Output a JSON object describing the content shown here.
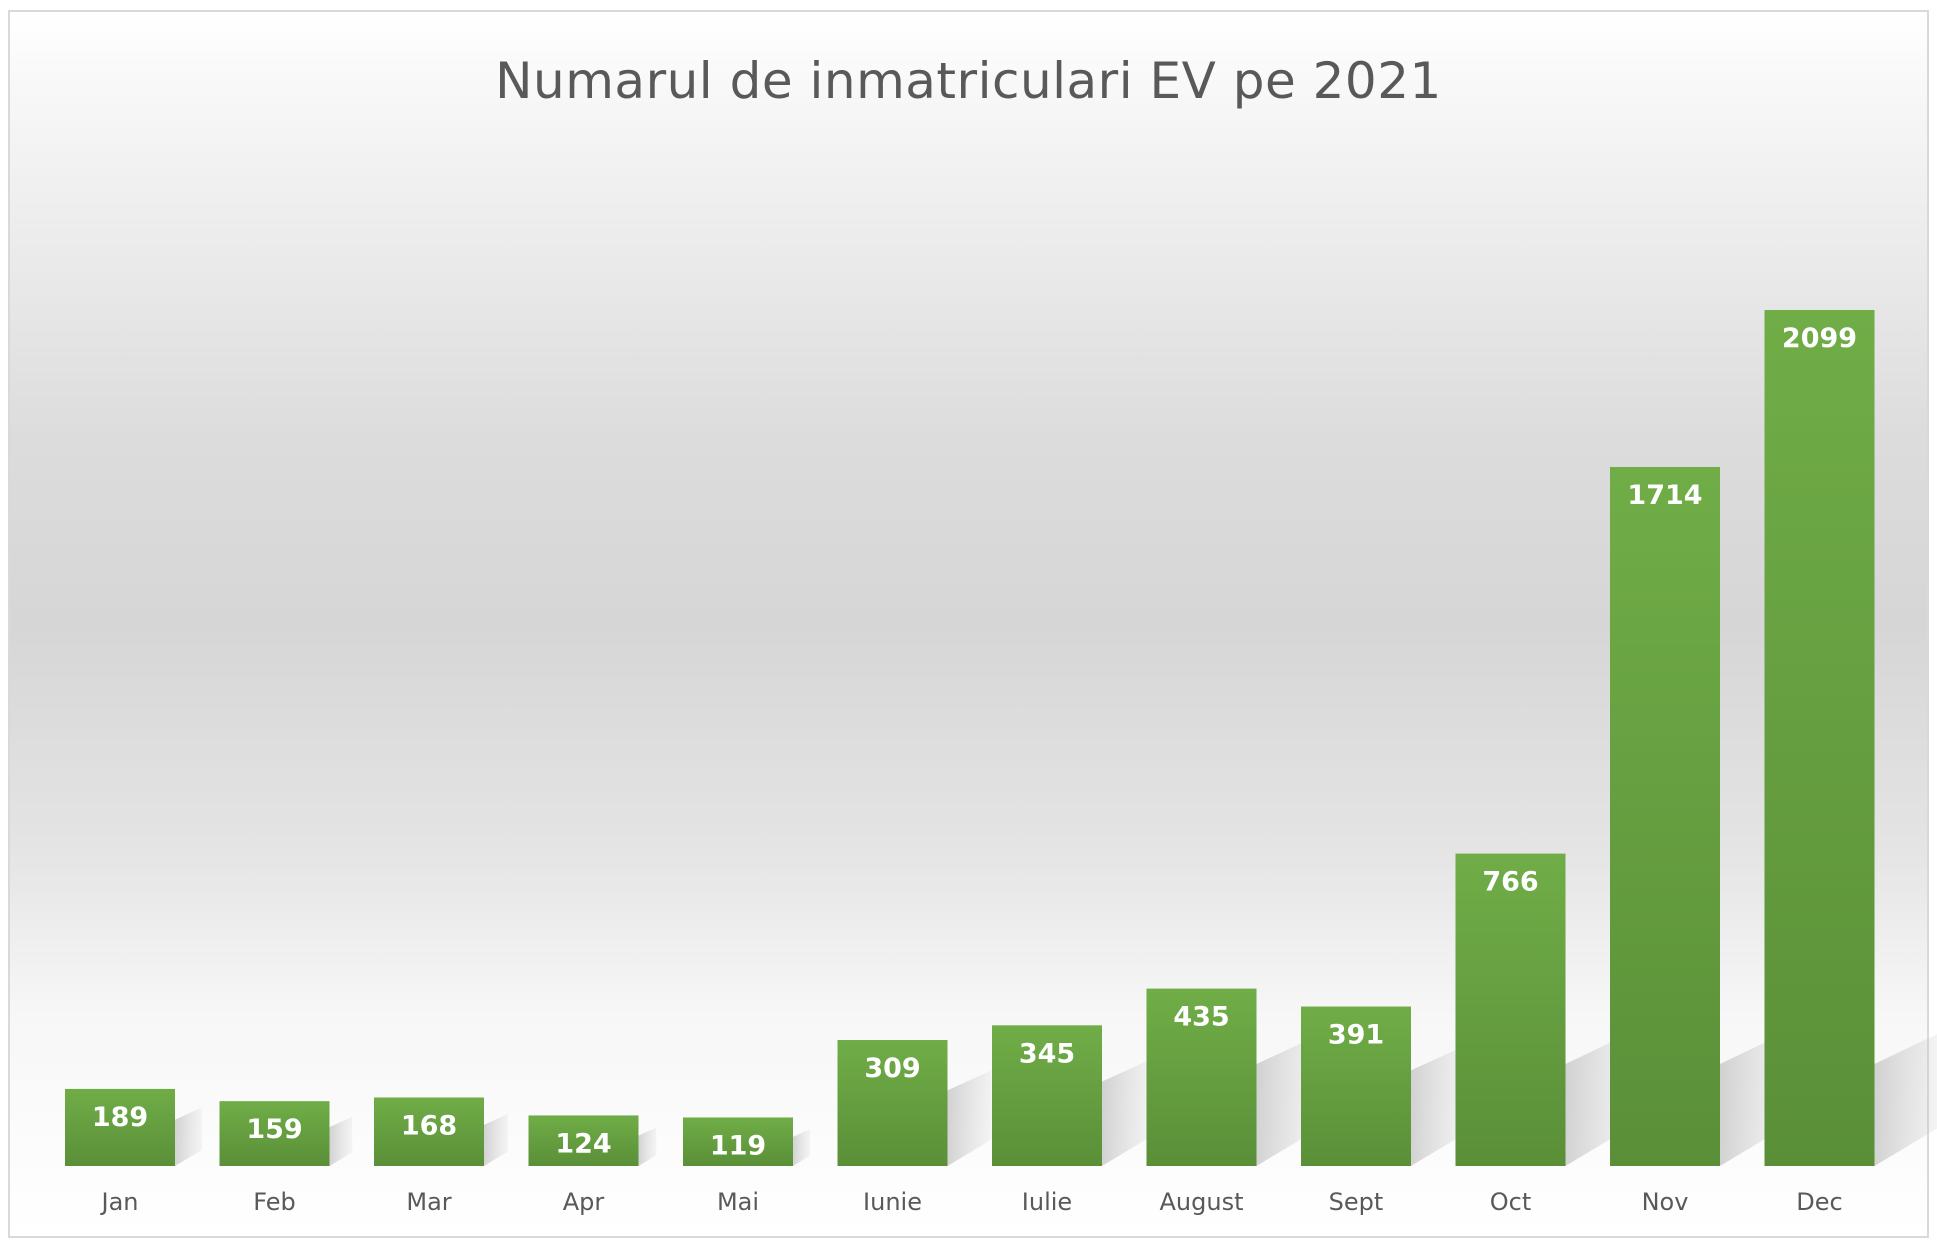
{
  "chart_data": {
    "type": "bar",
    "title": "Numarul de inmatriculari EV pe 2021",
    "xlabel": "",
    "ylabel": "",
    "categories": [
      "Jan",
      "Feb",
      "Mar",
      "Apr",
      "Mai",
      "Iunie",
      "Iulie",
      "August",
      "Sept",
      "Oct",
      "Nov",
      "Dec"
    ],
    "values": [
      189,
      159,
      168,
      124,
      119,
      309,
      345,
      435,
      391,
      766,
      1714,
      2099
    ],
    "data_labels": true,
    "grid": false,
    "legend": "none",
    "bar_color": "#6aa843",
    "bar_color_dark": "#5a8f38"
  }
}
